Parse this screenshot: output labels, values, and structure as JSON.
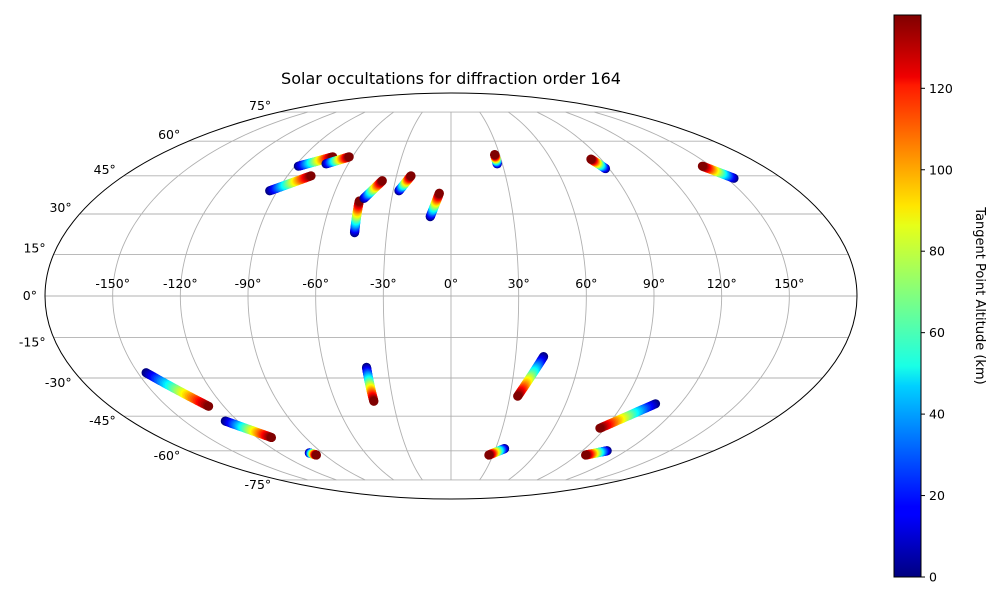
{
  "chart_data": {
    "type": "scatter",
    "projection": "mollweide",
    "title": "Solar occultations for diffraction order 164",
    "grid": true,
    "lon_ticks": [
      -150,
      -120,
      -90,
      -60,
      -30,
      0,
      30,
      60,
      90,
      120,
      150
    ],
    "lon_tick_labels": [
      "-150°",
      "-120°",
      "-90°",
      "-60°",
      "-30°",
      "0°",
      "30°",
      "60°",
      "90°",
      "120°",
      "150°"
    ],
    "lat_ticks": [
      -75,
      -60,
      -45,
      -30,
      -15,
      0,
      15,
      30,
      45,
      60,
      75
    ],
    "lat_tick_labels": [
      "-75°",
      "-60°",
      "-45°",
      "-30°",
      "-15°",
      "0°",
      "15°",
      "30°",
      "45°",
      "60°",
      "75°"
    ],
    "colorbar": {
      "label": "Tangent Point Altitude (km)",
      "range": [
        0,
        138
      ],
      "ticks": [
        0,
        20,
        40,
        60,
        80,
        100,
        120
      ],
      "tick_labels": [
        "0",
        "20",
        "40",
        "60",
        "80",
        "100",
        "120"
      ],
      "colormap": "jet"
    },
    "tracks": [
      {
        "lon_low": -146,
        "lat_low": -28,
        "lon_high": -128,
        "lat_high": -41
      },
      {
        "lon_low": -127,
        "lat_low": -47,
        "lon_high": -111,
        "lat_high": -54
      },
      {
        "lon_low": -99,
        "lat_low": -61,
        "lon_high": -96,
        "lat_high": -62
      },
      {
        "lon_low": -94,
        "lat_low": 39,
        "lon_high": -77,
        "lat_high": 45
      },
      {
        "lon_low": -88,
        "lat_low": 49,
        "lon_high": -72,
        "lat_high": 53
      },
      {
        "lon_low": -73,
        "lat_low": 50,
        "lon_high": -62,
        "lat_high": 53
      },
      {
        "lon_low": -45,
        "lat_low": 23,
        "lon_high": -46,
        "lat_high": 35
      },
      {
        "lon_low": -44,
        "lat_low": 36,
        "lon_high": -37,
        "lat_high": 43
      },
      {
        "lon_low": -27,
        "lat_low": 39,
        "lon_high": -22,
        "lat_high": 45
      },
      {
        "lon_low": -10,
        "lat_low": 29,
        "lon_high": -6,
        "lat_high": 38
      },
      {
        "lon_low": 27,
        "lat_low": 50,
        "lon_high": 27,
        "lat_high": 54
      },
      {
        "lon_low": 88,
        "lat_low": 48,
        "lon_high": 84,
        "lat_high": 52
      },
      {
        "lon_low": 154,
        "lat_low": 44,
        "lon_high": 145,
        "lat_high": 49
      },
      {
        "lon_low": -40,
        "lat_low": -26,
        "lon_high": -40,
        "lat_high": -39
      },
      {
        "lon_low": 43,
        "lat_low": -22,
        "lon_high": 34,
        "lat_high": -37
      },
      {
        "lon_low": 107,
        "lat_low": -40,
        "lon_high": 87,
        "lat_high": -50
      },
      {
        "lon_low": 36,
        "lat_low": -59,
        "lon_high": 27,
        "lat_high": -62
      },
      {
        "lon_low": 107,
        "lat_low": -60,
        "lon_high": 96,
        "lat_high": -62
      }
    ]
  }
}
